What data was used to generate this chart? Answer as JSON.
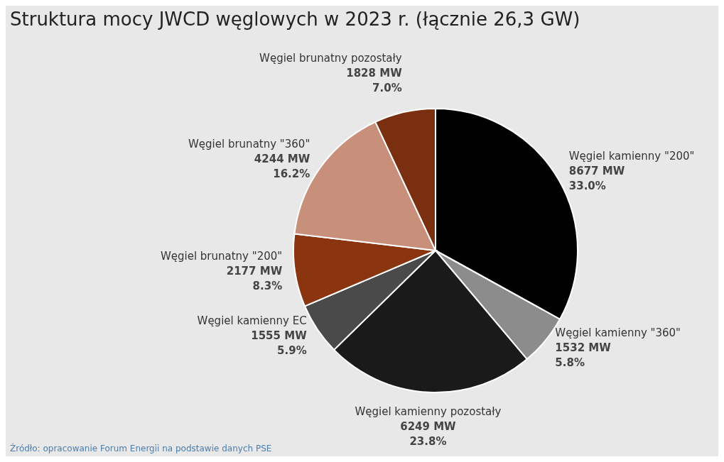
{
  "chart_data": {
    "type": "pie",
    "title": "Struktura mocy JWCD węglowych w 2023 r. (łącznie 26,3 GW)",
    "categories": [
      "Węgiel kamienny \"200\"",
      "Węgiel kamienny \"360\"",
      "Węgiel kamienny pozostały",
      "Węgiel kamienny EC",
      "Węgiel brunatny \"200\"",
      "Węgiel brunatny \"360\"",
      "Węgiel brunatny pozostały"
    ],
    "values": [
      8677,
      1532,
      6249,
      1555,
      2177,
      4244,
      1828
    ],
    "value_labels": [
      "8677 MW\n33.0%",
      "1532 MW\n5.8%",
      "6249 MW\n23.8%",
      "1555 MW\n5.9%",
      "2177 MW\n8.3%",
      "4244 MW\n16.2%",
      "1828 MW\n7.0%"
    ],
    "colors": [
      "#000000",
      "#8c8c8c",
      "#1a1a1a",
      "#4a4a4a",
      "#8a3410",
      "#c8907a",
      "#7a3010"
    ],
    "legend": false,
    "annotations": [
      "Źródło: opracowanie Forum Energii na podstawie danych PSE"
    ]
  }
}
